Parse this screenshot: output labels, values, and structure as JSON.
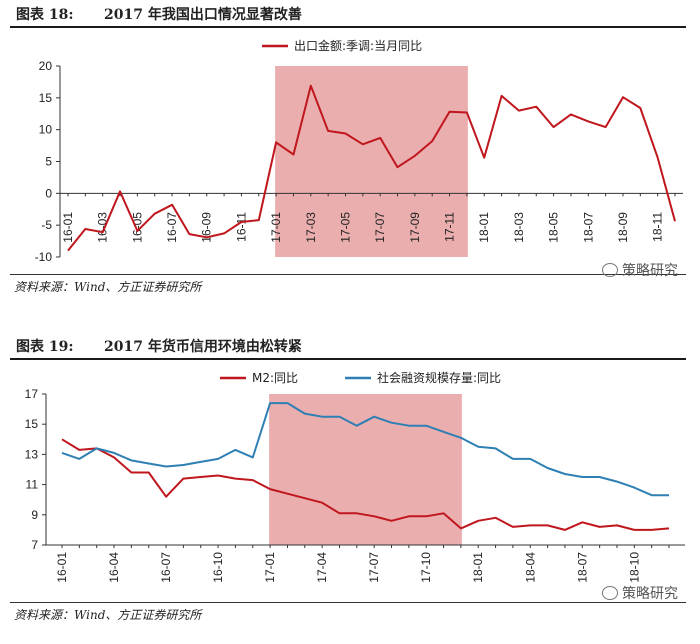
{
  "figure18": {
    "number": "图表 18:",
    "title": "2017 年我国出口情况显著改善",
    "source": "资料来源：Wind、方正证券研究所",
    "watermark": "策略研究"
  },
  "figure19": {
    "number": "图表 19:",
    "title": "2017 年货币信用环境由松转紧",
    "source": "资料来源：Wind、方正证券研究所",
    "watermark": "策略研究"
  },
  "chart_data": [
    {
      "type": "line",
      "title": "2017 年我国出口情况显著改善",
      "legend": [
        "出口金额:季调:当月同比"
      ],
      "legend_position": "top-center",
      "color": "#c0161d",
      "highlight_color": "#e8a0a0",
      "highlight_range": [
        "17-01",
        "17-12"
      ],
      "ylim": [
        -10,
        20
      ],
      "yticks": [
        -10,
        -5,
        0,
        5,
        10,
        15,
        20
      ],
      "x": [
        "16-01",
        "16-02",
        "16-03",
        "16-04",
        "16-05",
        "16-06",
        "16-07",
        "16-08",
        "16-09",
        "16-10",
        "16-11",
        "16-12",
        "17-01",
        "17-02",
        "17-03",
        "17-04",
        "17-05",
        "17-06",
        "17-07",
        "17-08",
        "17-09",
        "17-10",
        "17-11",
        "17-12",
        "18-01",
        "18-02",
        "18-03",
        "18-04",
        "18-05",
        "18-06",
        "18-07",
        "18-08",
        "18-09",
        "18-10",
        "18-11",
        "18-12"
      ],
      "xtick_labels": [
        "16-01",
        "16-03",
        "16-05",
        "16-07",
        "16-09",
        "16-11",
        "17-01",
        "17-03",
        "17-05",
        "17-07",
        "17-09",
        "17-11",
        "18-01",
        "18-03",
        "18-05",
        "18-07",
        "18-09",
        "18-11"
      ],
      "series": [
        {
          "name": "出口金额:季调:当月同比",
          "values": [
            -9.0,
            -5.6,
            -6.1,
            0.3,
            -5.9,
            -3.2,
            -1.8,
            -6.4,
            -6.9,
            -6.3,
            -4.5,
            -4.2,
            8.0,
            6.1,
            16.9,
            9.8,
            9.4,
            7.7,
            8.7,
            4.1,
            5.9,
            8.2,
            12.8,
            12.7,
            5.6,
            15.3,
            13.0,
            13.6,
            10.4,
            12.4,
            11.3,
            10.4,
            15.1,
            13.4,
            5.6,
            -4.4
          ]
        }
      ]
    },
    {
      "type": "line",
      "title": "2017 年货币信用环境由松转紧",
      "legend": [
        "M2:同比",
        "社会融资规模存量:同比"
      ],
      "legend_position": "top-center",
      "highlight_color": "#e8a0a0",
      "highlight_range": [
        "17-01",
        "17-12"
      ],
      "ylim": [
        7,
        17
      ],
      "yticks": [
        7,
        9,
        11,
        13,
        15,
        17
      ],
      "x": [
        "16-01",
        "16-02",
        "16-03",
        "16-04",
        "16-05",
        "16-06",
        "16-07",
        "16-08",
        "16-09",
        "16-10",
        "16-11",
        "16-12",
        "17-01",
        "17-02",
        "17-03",
        "17-04",
        "17-05",
        "17-06",
        "17-07",
        "17-08",
        "17-09",
        "17-10",
        "17-11",
        "17-12",
        "18-01",
        "18-02",
        "18-03",
        "18-04",
        "18-05",
        "18-06",
        "18-07",
        "18-08",
        "18-09",
        "18-10",
        "18-11",
        "18-12"
      ],
      "xtick_labels": [
        "16-01",
        "16-04",
        "16-07",
        "16-10",
        "17-01",
        "17-04",
        "17-07",
        "17-10",
        "18-01",
        "18-04",
        "18-07",
        "18-10"
      ],
      "series": [
        {
          "name": "M2:同比",
          "color": "#c0161d",
          "values": [
            14.0,
            13.3,
            13.4,
            12.8,
            11.8,
            11.8,
            10.2,
            11.4,
            11.5,
            11.6,
            11.4,
            11.3,
            10.7,
            10.4,
            10.1,
            9.8,
            9.1,
            9.1,
            8.9,
            8.6,
            8.9,
            8.9,
            9.1,
            8.1,
            8.6,
            8.8,
            8.2,
            8.3,
            8.3,
            8.0,
            8.5,
            8.2,
            8.3,
            8.0,
            8.0,
            8.1
          ]
        },
        {
          "name": "社会融资规模存量:同比",
          "color": "#2e7fb4",
          "values": [
            13.1,
            12.7,
            13.4,
            13.1,
            12.6,
            12.4,
            12.2,
            12.3,
            12.5,
            12.7,
            13.3,
            12.8,
            16.4,
            16.4,
            15.7,
            15.5,
            15.5,
            14.9,
            15.5,
            15.1,
            14.9,
            14.9,
            14.5,
            14.1,
            13.5,
            13.4,
            12.7,
            12.7,
            12.1,
            11.7,
            11.5,
            11.5,
            11.2,
            10.8,
            10.3,
            10.3
          ]
        }
      ]
    }
  ]
}
